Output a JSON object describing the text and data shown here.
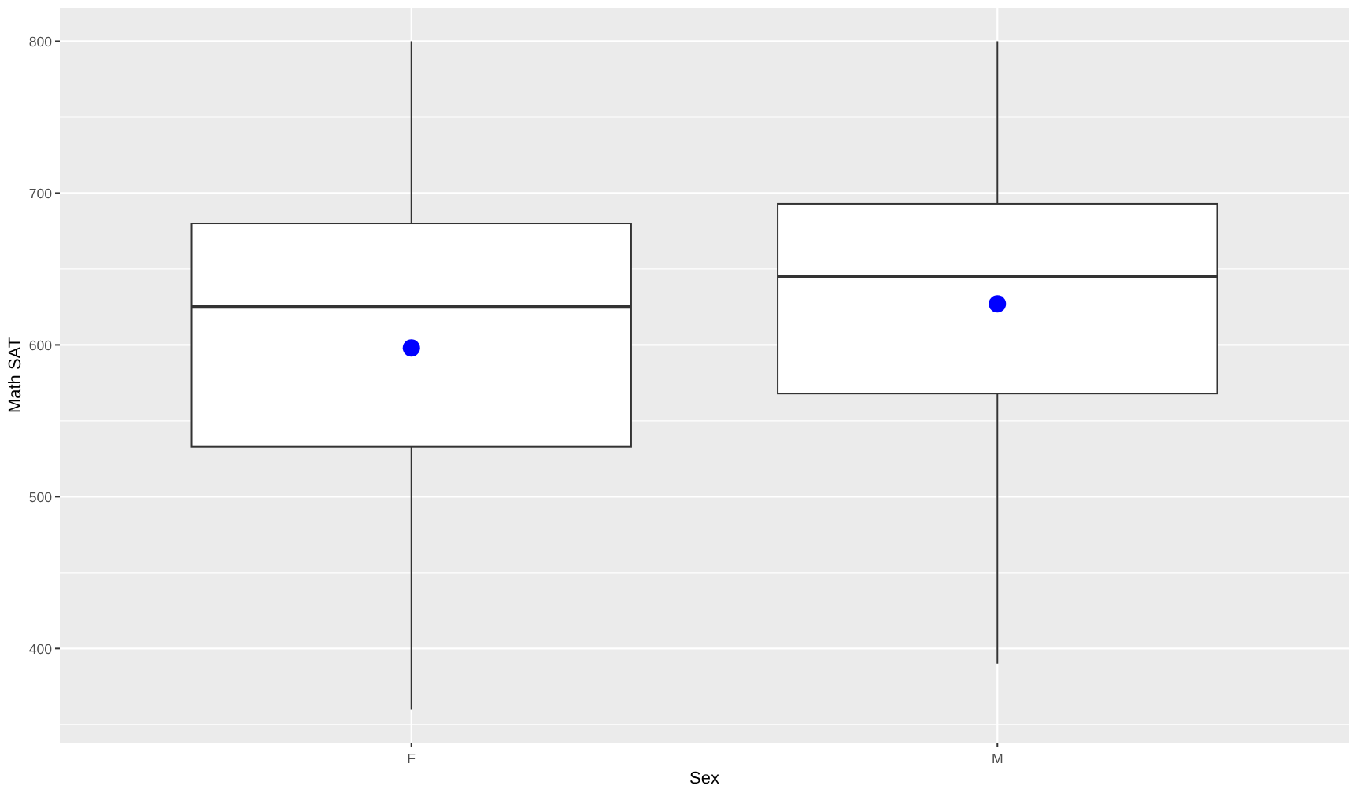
{
  "chart_data": {
    "type": "box",
    "xlabel": "Sex",
    "ylabel": "Math SAT",
    "categories": [
      "F",
      "M"
    ],
    "boxes": [
      {
        "low": 360,
        "q1": 533,
        "median": 625,
        "q3": 680,
        "high": 800
      },
      {
        "low": 390,
        "q1": 568,
        "median": 645,
        "q3": 693,
        "high": 800
      }
    ],
    "series": [
      {
        "type": "scatter",
        "x": [
          "F",
          "M"
        ],
        "values": [
          598,
          627
        ],
        "color": "#0000ff"
      }
    ],
    "ylim": [
      338,
      822
    ],
    "yticks": [
      {
        "value": 350,
        "label": null
      },
      400,
      {
        "value": 450,
        "label": null
      },
      500,
      {
        "value": 550,
        "label": null
      },
      600,
      {
        "value": 650,
        "label": null
      },
      700,
      {
        "value": 750,
        "label": null
      },
      800
    ],
    "grid": true
  }
}
